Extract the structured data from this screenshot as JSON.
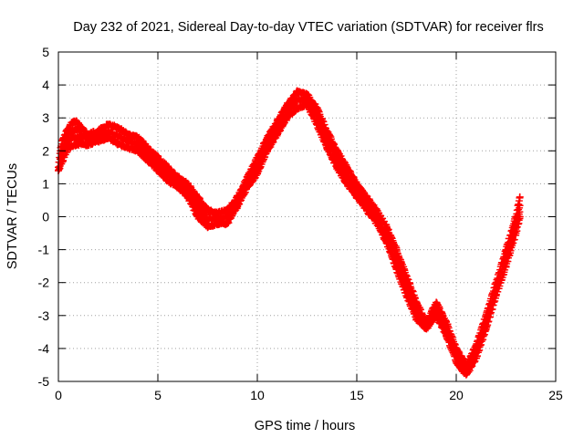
{
  "chart_data": {
    "type": "scatter",
    "title": "Day 232 of 2021, Sidereal Day-to-day VTEC variation (SDTVAR) for receiver flrs",
    "xlabel": "GPS time / hours",
    "ylabel": "SDTVAR / TECUs",
    "xlim": [
      0,
      25
    ],
    "ylim": [
      -5,
      5
    ],
    "xticks": [
      0,
      5,
      10,
      15,
      20,
      25
    ],
    "yticks": [
      -5,
      -4,
      -3,
      -2,
      -1,
      0,
      1,
      2,
      3,
      4,
      5
    ],
    "grid": true,
    "marker": "+",
    "colors": {
      "series": "#ff0000",
      "grid": "#a0a0a0",
      "axes": "#000000"
    },
    "series": [
      {
        "name": "SDTVAR",
        "points": [
          [
            0.0,
            1.5
          ],
          [
            0.1,
            2.0
          ],
          [
            0.2,
            2.3
          ],
          [
            0.4,
            2.6
          ],
          [
            0.6,
            2.8
          ],
          [
            0.8,
            2.9
          ],
          [
            1.0,
            2.85
          ],
          [
            1.2,
            2.7
          ],
          [
            1.5,
            2.5
          ],
          [
            2.0,
            2.6
          ],
          [
            2.5,
            2.8
          ],
          [
            3.0,
            2.7
          ],
          [
            3.5,
            2.5
          ],
          [
            4.0,
            2.4
          ],
          [
            4.5,
            2.1
          ],
          [
            5.0,
            1.8
          ],
          [
            5.5,
            1.5
          ],
          [
            6.0,
            1.2
          ],
          [
            6.5,
            1.0
          ],
          [
            7.0,
            0.6
          ],
          [
            7.5,
            0.2
          ],
          [
            8.0,
            0.1
          ],
          [
            8.5,
            0.2
          ],
          [
            9.0,
            0.6
          ],
          [
            9.5,
            1.2
          ],
          [
            10.0,
            1.8
          ],
          [
            10.5,
            2.4
          ],
          [
            11.0,
            2.9
          ],
          [
            11.5,
            3.4
          ],
          [
            12.0,
            3.8
          ],
          [
            12.5,
            3.7
          ],
          [
            13.0,
            3.3
          ],
          [
            13.5,
            2.6
          ],
          [
            14.0,
            2.0
          ],
          [
            14.5,
            1.5
          ],
          [
            15.0,
            1.0
          ],
          [
            15.5,
            0.6
          ],
          [
            16.0,
            0.2
          ],
          [
            16.5,
            -0.3
          ],
          [
            17.0,
            -1.0
          ],
          [
            17.5,
            -1.8
          ],
          [
            18.0,
            -2.6
          ],
          [
            18.5,
            -3.2
          ],
          [
            19.0,
            -2.6
          ],
          [
            19.5,
            -3.2
          ],
          [
            20.0,
            -4.0
          ],
          [
            20.5,
            -4.5
          ],
          [
            21.0,
            -3.9
          ],
          [
            21.5,
            -3.0
          ],
          [
            22.0,
            -2.0
          ],
          [
            22.5,
            -1.0
          ],
          [
            23.0,
            0.0
          ],
          [
            23.2,
            0.6
          ]
        ],
        "lower_envelope": [
          [
            0.0,
            1.4
          ],
          [
            0.5,
            2.1
          ],
          [
            1.0,
            2.2
          ],
          [
            1.5,
            2.2
          ],
          [
            2.0,
            2.3
          ],
          [
            2.5,
            2.4
          ],
          [
            3.0,
            2.2
          ],
          [
            3.5,
            2.1
          ],
          [
            4.0,
            2.0
          ],
          [
            4.5,
            1.7
          ],
          [
            5.0,
            1.4
          ],
          [
            5.5,
            1.1
          ],
          [
            6.0,
            0.9
          ],
          [
            6.5,
            0.6
          ],
          [
            7.0,
            0.0
          ],
          [
            7.5,
            -0.3
          ],
          [
            8.0,
            -0.2
          ],
          [
            8.5,
            -0.2
          ],
          [
            9.0,
            0.3
          ],
          [
            9.5,
            0.9
          ],
          [
            10.0,
            1.3
          ],
          [
            10.5,
            2.0
          ],
          [
            11.0,
            2.5
          ],
          [
            11.5,
            3.0
          ],
          [
            12.0,
            3.3
          ],
          [
            12.5,
            3.4
          ],
          [
            13.0,
            2.8
          ],
          [
            13.5,
            2.1
          ],
          [
            14.0,
            1.5
          ],
          [
            14.5,
            1.0
          ],
          [
            15.0,
            0.6
          ],
          [
            15.5,
            0.2
          ],
          [
            16.0,
            -0.2
          ],
          [
            16.5,
            -0.8
          ],
          [
            17.0,
            -1.6
          ],
          [
            17.5,
            -2.4
          ],
          [
            18.0,
            -3.1
          ],
          [
            18.5,
            -3.4
          ],
          [
            19.0,
            -3.0
          ],
          [
            19.5,
            -3.6
          ],
          [
            20.0,
            -4.4
          ],
          [
            20.5,
            -4.8
          ],
          [
            21.0,
            -4.3
          ],
          [
            21.5,
            -3.4
          ],
          [
            22.0,
            -2.4
          ],
          [
            22.5,
            -1.5
          ],
          [
            23.0,
            -0.5
          ],
          [
            23.2,
            0.0
          ]
        ]
      }
    ]
  }
}
